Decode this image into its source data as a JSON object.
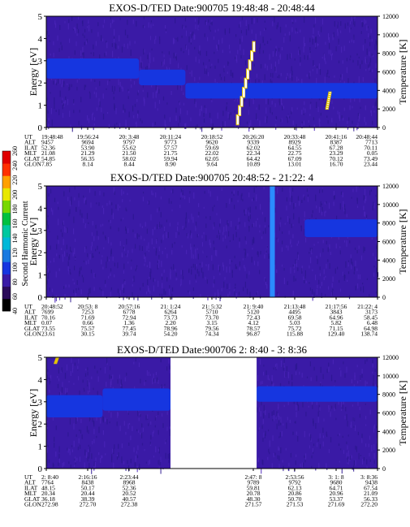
{
  "colors": {
    "background": "#3a1aa6",
    "band": "#1636e0",
    "hot": "#ffffff",
    "hot_edge": "#e8c800",
    "spike": "#2a8cff"
  },
  "colorbar": {
    "label": "Second Harmonic Current",
    "ticks": [
      "40",
      "60",
      "80",
      "100",
      "120",
      "140",
      "160",
      "180",
      "200",
      "220",
      "240",
      "260"
    ],
    "colors": [
      "#000000",
      "#2a0a5a",
      "#3a1aa6",
      "#1636e0",
      "#1a7ae0",
      "#00b8d8",
      "#00c8a0",
      "#00c040",
      "#78d800",
      "#e8e800",
      "#ffa000",
      "#ff3000",
      "#e00000"
    ]
  },
  "chart_data": [
    {
      "type": "heatmap",
      "title": "EXOS-D/TED    Date:900705  19:48:48 - 20:48:44",
      "ylabel": "Energy [eV]",
      "y2label": "Temperature [K]",
      "ylim": [
        0,
        5
      ],
      "y2lim": [
        0,
        12000
      ],
      "yticks": [
        "0",
        "1",
        "2",
        "3",
        "4",
        "5"
      ],
      "y2ticks": [
        "0",
        "2000",
        "4000",
        "6000",
        "8000",
        "10000",
        "12000"
      ],
      "data_gaps": [],
      "features": [
        {
          "kind": "band",
          "t0": 0.0,
          "t1": 0.28,
          "e0": 2.2,
          "e1": 3.1
        },
        {
          "kind": "band",
          "t0": 0.28,
          "t1": 0.42,
          "e0": 1.9,
          "e1": 2.6
        },
        {
          "kind": "band",
          "t0": 0.42,
          "t1": 1.0,
          "e0": 1.3,
          "e1": 2.0
        },
        {
          "kind": "hot",
          "t0": 0.575,
          "t1": 0.63,
          "e0": 0.1,
          "e1": 3.8
        },
        {
          "kind": "hot",
          "t0": 0.845,
          "t1": 0.855,
          "e0": 0.8,
          "e1": 1.6
        }
      ],
      "table": {
        "row_labels": [
          "UT",
          "ALT",
          "ILAT",
          "MLT",
          "GLAT",
          "GLON"
        ],
        "columns": [
          [
            "19:48:48",
            "9457",
            "52.36",
            "21.08",
            "54.85",
            "7.85"
          ],
          [
            "19:56:24",
            "9694",
            "53.90",
            "21.29",
            "56.35",
            "8.14"
          ],
          [
            "20: 3:48",
            "9797",
            "55.62",
            "21.50",
            "58.02",
            "8.44"
          ],
          [
            "20:11:24",
            "9773",
            "57.57",
            "21.75",
            "59.94",
            "8.90"
          ],
          [
            "20:18:52",
            "9620",
            "59.69",
            "22.02",
            "62.05",
            "9.64"
          ],
          [
            "20:26:20",
            "9339",
            "62.02",
            "22.34",
            "64.42",
            "10.89"
          ],
          [
            "20:33:48",
            "8929",
            "64.55",
            "22.75",
            "67.09",
            "13.01"
          ],
          [
            "20:41:16",
            "8387",
            "67.28",
            "23.29",
            "70.12",
            "16.70"
          ],
          [
            "20:48:44",
            "7713",
            "70.11",
            "0.05",
            "73.49",
            "23.44"
          ]
        ]
      }
    },
    {
      "type": "heatmap",
      "title": "EXOS-D/TED    Date:900705  20:48:52 - 21:22: 4",
      "ylabel": "Energy [eV]",
      "y2label": "Temperature [K]",
      "ylim": [
        0,
        5
      ],
      "y2lim": [
        0,
        12000
      ],
      "yticks": [
        "0",
        "1",
        "2",
        "3",
        "4",
        "5"
      ],
      "y2ticks": [
        "0",
        "2000",
        "4000",
        "6000",
        "8000",
        "10000",
        "12000"
      ],
      "data_gaps": [],
      "features": [
        {
          "kind": "band",
          "t0": 0.78,
          "t1": 1.0,
          "e0": 2.7,
          "e1": 3.5
        },
        {
          "kind": "spike",
          "t0": 0.675,
          "t1": 0.69,
          "e0": 0.0,
          "e1": 5.0
        }
      ],
      "table": {
        "row_labels": [
          "UT",
          "ALT",
          "ILAT",
          "MLT",
          "GLAT",
          "GLON"
        ],
        "columns": [
          [
            "20:48:52",
            "7699",
            "70.16",
            "0.07",
            "73.55",
            "23.61"
          ],
          [
            "20:53: 8",
            "7253",
            "71.69",
            "0.66",
            "75.57",
            "30.15"
          ],
          [
            "20:57:16",
            "6778",
            "72.94",
            "1.36",
            "77.45",
            "39.74"
          ],
          [
            "21: 1:24",
            "6264",
            "73.73",
            "2.20",
            "78.96",
            "54.20"
          ],
          [
            "21: 5:32",
            "5710",
            "73.70",
            "3.15",
            "79.56",
            "74.34"
          ],
          [
            "21: 9:40",
            "5120",
            "72.43",
            "4.12",
            "78.57",
            "96.87"
          ],
          [
            "21:13:48",
            "4495",
            "69.58",
            "5.03",
            "75.72",
            "115.88"
          ],
          [
            "21:17:56",
            "3843",
            "64.96",
            "5.82",
            "71.15",
            "129.40"
          ],
          [
            "21:22: 4",
            "3173",
            "58.45",
            "6.48",
            "64.98",
            "138.74"
          ]
        ]
      }
    },
    {
      "type": "heatmap",
      "title": "EXOS-D/TED    Date:900706  2: 8:40 - 3: 8:36",
      "ylabel": "Energy [eV]",
      "y2label": "Temperature [K]",
      "ylim": [
        0,
        5
      ],
      "y2lim": [
        0,
        12000
      ],
      "yticks": [
        "0",
        "1",
        "2",
        "3",
        "4",
        "5"
      ],
      "y2ticks": [
        "0",
        "2000",
        "4000",
        "6000",
        "8000",
        "10000",
        "12000"
      ],
      "data_gaps": [
        [
          0.375,
          0.635
        ]
      ],
      "features": [
        {
          "kind": "band",
          "t0": 0.0,
          "t1": 0.17,
          "e0": 2.3,
          "e1": 3.3
        },
        {
          "kind": "band",
          "t0": 0.17,
          "t1": 0.375,
          "e0": 2.6,
          "e1": 3.6
        },
        {
          "kind": "band",
          "t0": 0.635,
          "t1": 1.0,
          "e0": 3.0,
          "e1": 3.7
        },
        {
          "kind": "hot",
          "t0": 0.025,
          "t1": 0.032,
          "e0": 4.7,
          "e1": 5.0
        }
      ],
      "table": {
        "row_labels": [
          "UT",
          "ALT",
          "ILAT",
          "MLT",
          "GLAT",
          "GLON"
        ],
        "columns": [
          [
            "2: 8:40",
            "7764",
            "48.15",
            "20.34",
            "36.18",
            "272.98"
          ],
          [
            "2:16:16",
            "8438",
            "50.17",
            "20.44",
            "38.39",
            "272.70"
          ],
          [
            "2:23:44",
            "8968",
            "52.36",
            "20.52",
            "40.57",
            "272.38"
          ],
          null,
          null,
          [
            "2:47: 8",
            "9789",
            "59.81",
            "20.78",
            "48.30",
            "271.57"
          ],
          [
            "2:53:56",
            "9792",
            "62.13",
            "20.86",
            "50.70",
            "271.53"
          ],
          [
            "3: 1: 8",
            "9680",
            "64.71",
            "20.96",
            "53.37",
            "271.69"
          ],
          [
            "3: 8:36",
            "9438",
            "67.54",
            "21.09",
            "56.33",
            "272.20"
          ]
        ]
      }
    }
  ]
}
